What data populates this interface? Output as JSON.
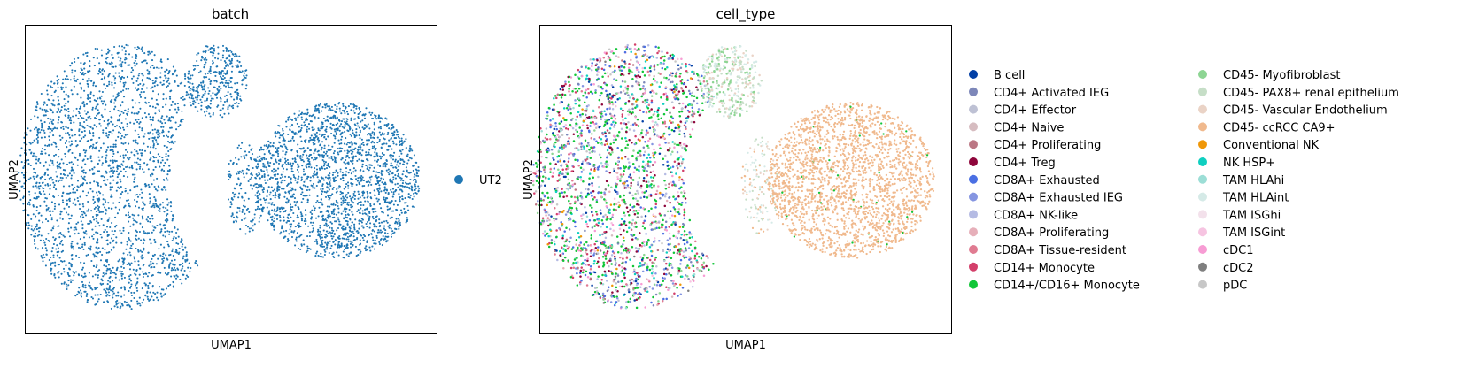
{
  "panels": [
    {
      "title": "batch",
      "xlabel": "UMAP1",
      "ylabel": "UMAP2",
      "legend": [
        {
          "label": "UT2",
          "color": "#1f77b4"
        }
      ]
    },
    {
      "title": "cell_type",
      "xlabel": "UMAP1",
      "ylabel": "UMAP2",
      "legend": [
        {
          "label": "B cell",
          "color": "#023fa5"
        },
        {
          "label": "CD4+ Activated IEG",
          "color": "#7d87b9"
        },
        {
          "label": "CD4+ Effector",
          "color": "#bec1d4"
        },
        {
          "label": "CD4+ Naive",
          "color": "#d6bcc0"
        },
        {
          "label": "CD4+ Proliferating",
          "color": "#bb7784"
        },
        {
          "label": "CD4+ Treg",
          "color": "#8e063b"
        },
        {
          "label": "CD8A+ Exhausted",
          "color": "#4a6fe3"
        },
        {
          "label": "CD8A+ Exhausted IEG",
          "color": "#8595e1"
        },
        {
          "label": "CD8A+ NK-like",
          "color": "#b5bbe3"
        },
        {
          "label": "CD8A+ Proliferating",
          "color": "#e6afb9"
        },
        {
          "label": "CD8A+ Tissue-resident",
          "color": "#e07b91"
        },
        {
          "label": "CD14+ Monocyte",
          "color": "#d33f6a"
        },
        {
          "label": "CD14+/CD16+ Monocyte",
          "color": "#11c638"
        },
        {
          "label": "CD45- Myofibroblast",
          "color": "#8dd593"
        },
        {
          "label": "CD45- PAX8+ renal epithelium",
          "color": "#c6dec7"
        },
        {
          "label": "CD45- Vascular Endothelium",
          "color": "#ead3c6"
        },
        {
          "label": "CD45- ccRCC CA9+",
          "color": "#f0b98d"
        },
        {
          "label": "Conventional NK",
          "color": "#ef9708"
        },
        {
          "label": "NK HSP+",
          "color": "#0fcfc0"
        },
        {
          "label": "TAM HLAhi",
          "color": "#9cded6"
        },
        {
          "label": "TAM HLAint",
          "color": "#d5eae7"
        },
        {
          "label": "TAM ISGhi",
          "color": "#f3e1eb"
        },
        {
          "label": "TAM ISGint",
          "color": "#f6c4e1"
        },
        {
          "label": "cDC1",
          "color": "#f79cd4"
        },
        {
          "label": "cDC2",
          "color": "#7f7f7f"
        },
        {
          "label": "pDC",
          "color": "#c7c7c7"
        }
      ]
    }
  ],
  "chart_data": [
    {
      "type": "scatter",
      "title": "batch",
      "xlabel": "UMAP1",
      "ylabel": "UMAP2",
      "grid": false,
      "ticks": "none",
      "legend_placement": "right",
      "series": [
        {
          "name": "UT2",
          "color": "#1f77b4"
        }
      ],
      "clusters": [
        {
          "name": "UT2",
          "region": "left",
          "approx_center": [
            0.25,
            0.55
          ]
        },
        {
          "name": "UT2",
          "region": "top-middle",
          "approx_center": [
            0.5,
            0.84
          ]
        },
        {
          "name": "UT2",
          "region": "right",
          "approx_center": [
            0.75,
            0.52
          ]
        }
      ]
    },
    {
      "type": "scatter",
      "title": "cell_type",
      "xlabel": "UMAP1",
      "ylabel": "UMAP2",
      "grid": false,
      "ticks": "none",
      "legend_placement": "right",
      "legend_columns": 2,
      "series": [
        {
          "name": "B cell",
          "color": "#023fa5"
        },
        {
          "name": "CD4+ Activated IEG",
          "color": "#7d87b9"
        },
        {
          "name": "CD4+ Effector",
          "color": "#bec1d4"
        },
        {
          "name": "CD4+ Naive",
          "color": "#d6bcc0"
        },
        {
          "name": "CD4+ Proliferating",
          "color": "#bb7784"
        },
        {
          "name": "CD4+ Treg",
          "color": "#8e063b"
        },
        {
          "name": "CD8A+ Exhausted",
          "color": "#4a6fe3"
        },
        {
          "name": "CD8A+ Exhausted IEG",
          "color": "#8595e1"
        },
        {
          "name": "CD8A+ NK-like",
          "color": "#b5bbe3"
        },
        {
          "name": "CD8A+ Proliferating",
          "color": "#e6afb9"
        },
        {
          "name": "CD8A+ Tissue-resident",
          "color": "#e07b91"
        },
        {
          "name": "CD14+ Monocyte",
          "color": "#d33f6a"
        },
        {
          "name": "CD14+/CD16+ Monocyte",
          "color": "#11c638"
        },
        {
          "name": "CD45- Myofibroblast",
          "color": "#8dd593"
        },
        {
          "name": "CD45- PAX8+ renal epithelium",
          "color": "#c6dec7"
        },
        {
          "name": "CD45- Vascular Endothelium",
          "color": "#ead3c6"
        },
        {
          "name": "CD45- ccRCC CA9+",
          "color": "#f0b98d"
        },
        {
          "name": "Conventional NK",
          "color": "#ef9708"
        },
        {
          "name": "NK HSP+",
          "color": "#0fcfc0"
        },
        {
          "name": "TAM HLAhi",
          "color": "#9cded6"
        },
        {
          "name": "TAM HLAint",
          "color": "#d5eae7"
        },
        {
          "name": "TAM ISGhi",
          "color": "#f3e1eb"
        },
        {
          "name": "TAM ISGint",
          "color": "#f6c4e1"
        },
        {
          "name": "cDC1",
          "color": "#f79cd4"
        },
        {
          "name": "cDC2",
          "color": "#7f7f7f"
        },
        {
          "name": "pDC",
          "color": "#c7c7c7"
        }
      ],
      "clusters": [
        {
          "region": "left",
          "dominant": [
            "CD14+/CD16+ Monocyte",
            "CD8A+ Exhausted",
            "CD4+ Treg",
            "CD14+ Monocyte",
            "NK HSP+"
          ]
        },
        {
          "region": "top-middle",
          "dominant": [
            "CD45- Myofibroblast",
            "CD45- PAX8+ renal epithelium",
            "CD45- Vascular Endothelium"
          ]
        },
        {
          "region": "right",
          "dominant": [
            "CD45- ccRCC CA9+"
          ]
        }
      ]
    }
  ]
}
